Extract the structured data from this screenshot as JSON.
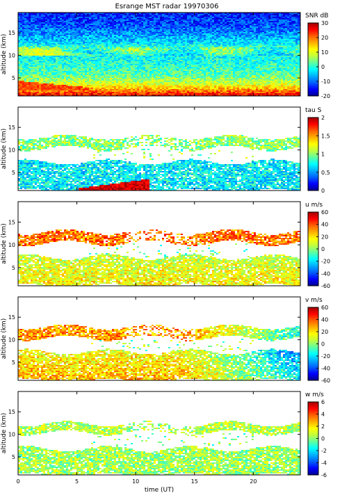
{
  "figure": {
    "title": "Esrange MST radar 19970306"
  },
  "colormap": [
    "#00008f",
    "#0000ff",
    "#0060ff",
    "#00b0ff",
    "#00ffff",
    "#60ff9f",
    "#c0ff40",
    "#ffff00",
    "#ffb000",
    "#ff6000",
    "#ff0000",
    "#a00000"
  ],
  "chart_data": [
    {
      "type": "heatmap",
      "quantity": "SNR",
      "colorbar_label": "SNR dB",
      "clim": [
        -20,
        30
      ],
      "cbar_ticks": [
        -20,
        -10,
        0,
        10,
        20,
        30
      ],
      "ylabel": "altitude (km)",
      "yticks": [
        5,
        10,
        15
      ],
      "ylim": [
        1,
        19.5
      ],
      "xlim": [
        0,
        24
      ],
      "xticks": [
        0,
        5,
        10,
        15,
        20
      ],
      "profile": [
        [
          1,
          28
        ],
        [
          2.5,
          18
        ],
        [
          4,
          8
        ],
        [
          6,
          2
        ],
        [
          8,
          0
        ],
        [
          10,
          -2
        ],
        [
          11.5,
          3
        ],
        [
          13,
          -4
        ],
        [
          15,
          -8
        ],
        [
          17,
          -12
        ],
        [
          19.5,
          -14
        ]
      ],
      "features": [
        {
          "desc": "strong low-level layer early in day",
          "t": [
            0,
            6
          ],
          "alt": [
            2.5,
            4.5
          ],
          "value": 22
        },
        {
          "desc": "tropopause layer",
          "t": [
            0,
            24
          ],
          "alt": [
            10,
            12
          ],
          "value": 6
        }
      ]
    },
    {
      "type": "heatmap",
      "quantity": "tau",
      "colorbar_label": "tau S",
      "clim": [
        0,
        2
      ],
      "cbar_ticks": [
        0,
        0.5,
        1,
        1.5,
        2
      ],
      "ylabel": "altitude (km)",
      "yticks": [
        5,
        10,
        15
      ],
      "ylim": [
        1,
        19.5
      ],
      "xlim": [
        0,
        24
      ],
      "xticks": [
        0,
        5,
        10,
        15,
        20
      ],
      "layers": [
        {
          "alt": [
            10.5,
            13
          ],
          "value": 1.0
        },
        {
          "alt": [
            1,
            7.5
          ],
          "value": 0.7
        }
      ],
      "features": [
        {
          "desc": "long correlation times low altitude",
          "t": [
            5,
            11
          ],
          "alt": [
            1,
            3
          ],
          "value": 1.9
        }
      ]
    },
    {
      "type": "heatmap",
      "quantity": "u",
      "colorbar_label": "u m/s",
      "clim": [
        -60,
        60
      ],
      "cbar_ticks": [
        -60,
        -40,
        -20,
        0,
        20,
        40,
        60
      ],
      "ylabel": "altitude (km)",
      "yticks": [
        5,
        10,
        15
      ],
      "ylim": [
        1,
        19.5
      ],
      "xlim": [
        0,
        24
      ],
      "xticks": [
        0,
        5,
        10,
        15,
        20
      ],
      "layers": [
        {
          "alt": [
            10.5,
            13
          ],
          "value": 35
        },
        {
          "alt": [
            1,
            7.5
          ],
          "value": 18
        }
      ]
    },
    {
      "type": "heatmap",
      "quantity": "v",
      "colorbar_label": "v m/s",
      "clim": [
        -60,
        60
      ],
      "cbar_ticks": [
        -60,
        -40,
        -20,
        0,
        20,
        40,
        60
      ],
      "ylabel": "altitude (km)",
      "yticks": [
        5,
        10,
        15
      ],
      "ylim": [
        1,
        19.5
      ],
      "xlim": [
        0,
        24
      ],
      "xticks": [
        0,
        5,
        10,
        15,
        20
      ],
      "layers": [
        {
          "alt": [
            10.5,
            13
          ],
          "value": 30
        },
        {
          "alt": [
            1,
            7.5
          ],
          "value": 15
        }
      ],
      "trend": "decreasing to negative after 15 UT"
    },
    {
      "type": "heatmap",
      "quantity": "w",
      "colorbar_label": "w m/s",
      "clim": [
        -6,
        6
      ],
      "cbar_ticks": [
        -6,
        -4,
        -2,
        0,
        2,
        4,
        6
      ],
      "ylabel": "altitude (km)",
      "yticks": [
        5,
        10,
        15
      ],
      "ylim": [
        1,
        19.5
      ],
      "xlim": [
        0,
        24
      ],
      "xticks": [
        0,
        5,
        10,
        15,
        20
      ],
      "xlabel": "time (UT)",
      "layers": [
        {
          "alt": [
            10.5,
            12.5
          ],
          "value": 0.5
        },
        {
          "alt": [
            1,
            7
          ],
          "value": 0.3
        }
      ]
    }
  ]
}
